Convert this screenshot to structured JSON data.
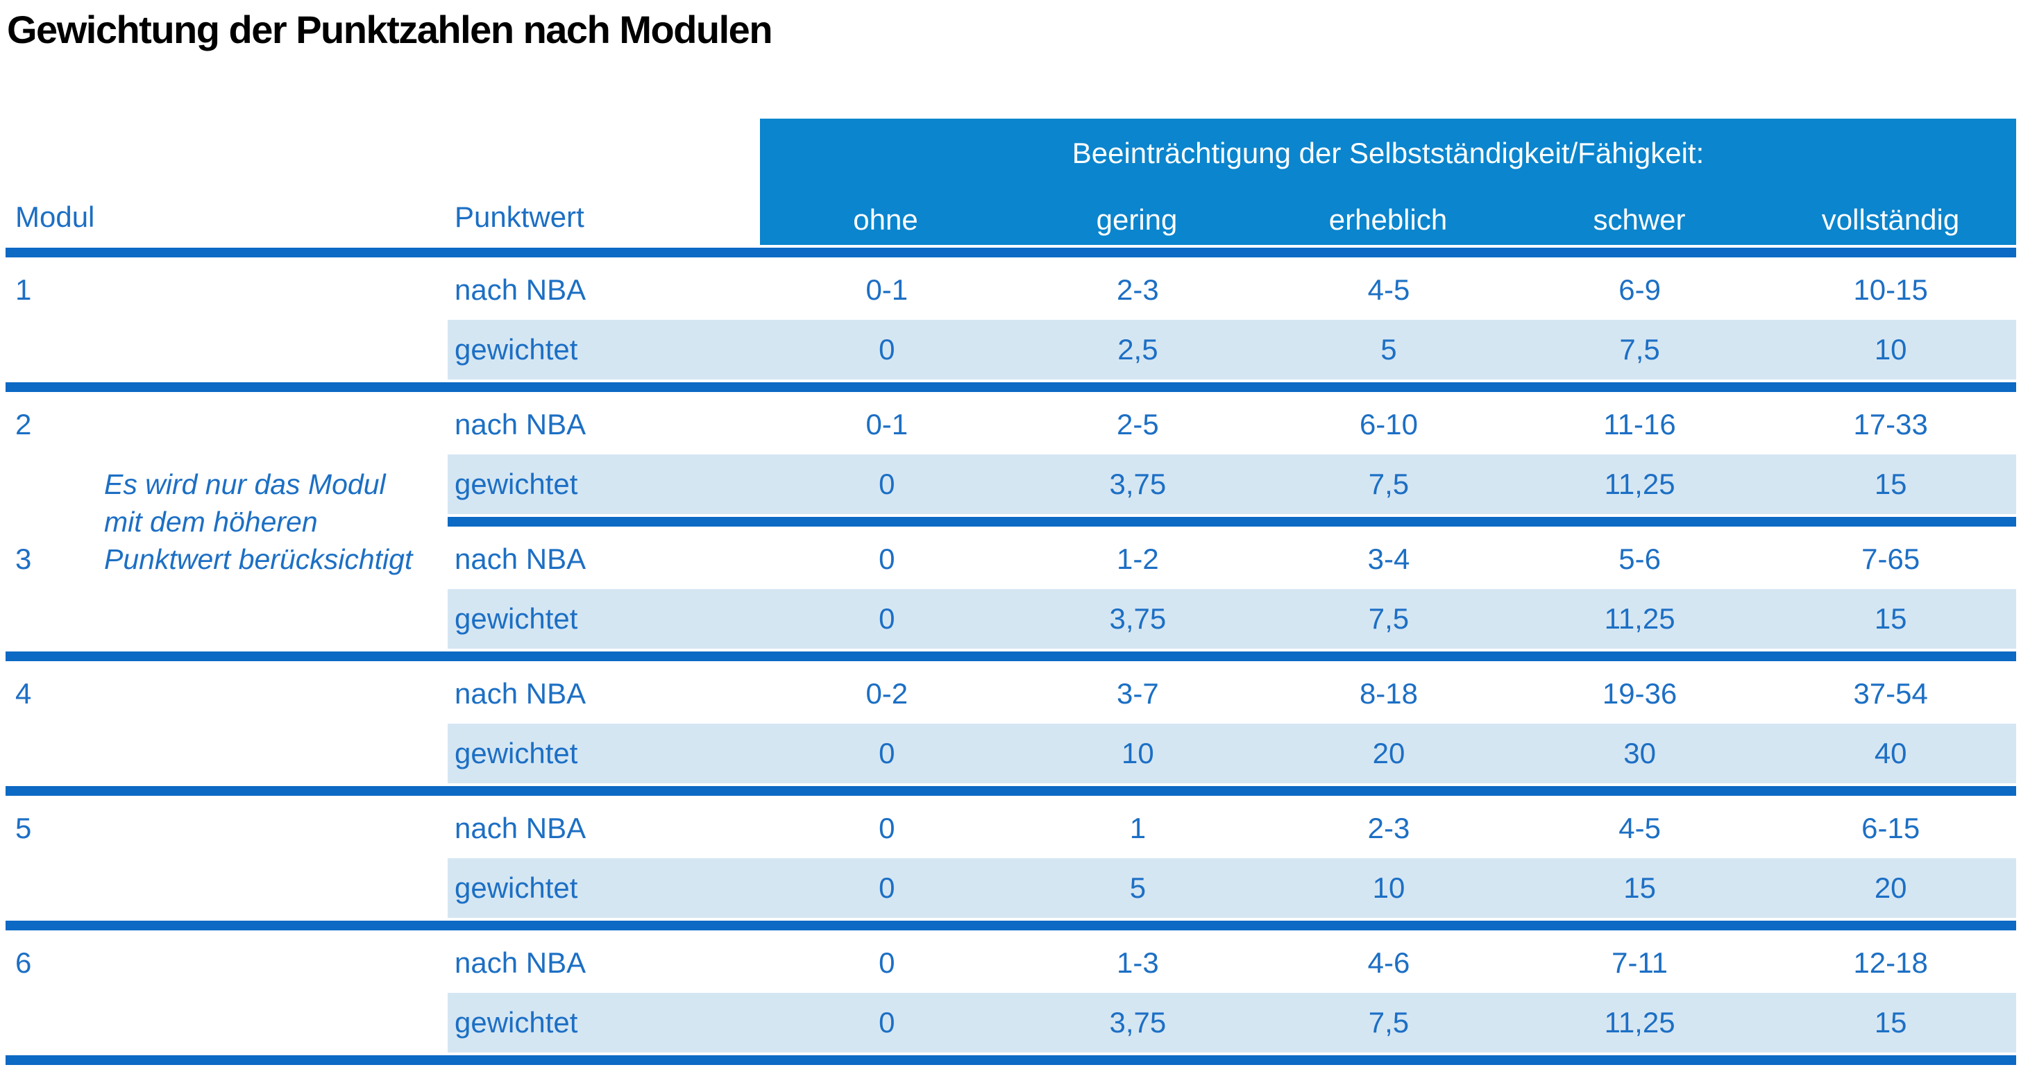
{
  "title": "Gewichtung der Punktzahlen nach Modulen",
  "colors": {
    "header_bg": "#0b85cd",
    "separator": "#0c69c4",
    "text": "#1c6fc4",
    "row_highlight": "#d5e6f3",
    "title_text": "#000000"
  },
  "table": {
    "col_headers": {
      "modul": "Modul",
      "punktwert": "Punktwert"
    },
    "group_header": "Beeinträchtigung der Selbstständigkeit/Fähigkeit:",
    "levels": [
      "ohne",
      "gering",
      "erheblich",
      "schwer",
      "vollständig"
    ],
    "row_labels": {
      "raw": "nach NBA",
      "weighted": "gewichtet"
    },
    "note_lines": [
      "Es wird nur das Modul",
      "mit dem höheren",
      "Punktwert berücksichtigt"
    ],
    "modules": [
      {
        "id": "1",
        "nach_nba": [
          "0-1",
          "2-3",
          "4-5",
          "6-9",
          "10-15"
        ],
        "gewichtet": [
          "0",
          "2,5",
          "5",
          "7,5",
          "10"
        ]
      },
      {
        "id": "2",
        "nach_nba": [
          "0-1",
          "2-5",
          "6-10",
          "11-16",
          "17-33"
        ],
        "gewichtet": [
          "0",
          "3,75",
          "7,5",
          "11,25",
          "15"
        ]
      },
      {
        "id": "3",
        "nach_nba": [
          "0",
          "1-2",
          "3-4",
          "5-6",
          "7-65"
        ],
        "gewichtet": [
          "0",
          "3,75",
          "7,5",
          "11,25",
          "15"
        ]
      },
      {
        "id": "4",
        "nach_nba": [
          "0-2",
          "3-7",
          "8-18",
          "19-36",
          "37-54"
        ],
        "gewichtet": [
          "0",
          "10",
          "20",
          "30",
          "40"
        ]
      },
      {
        "id": "5",
        "nach_nba": [
          "0",
          "1",
          "2-3",
          "4-5",
          "6-15"
        ],
        "gewichtet": [
          "0",
          "5",
          "10",
          "15",
          "20"
        ]
      },
      {
        "id": "6",
        "nach_nba": [
          "0",
          "1-3",
          "4-6",
          "7-11",
          "12-18"
        ],
        "gewichtet": [
          "0",
          "3,75",
          "7,5",
          "11,25",
          "15"
        ]
      }
    ]
  }
}
